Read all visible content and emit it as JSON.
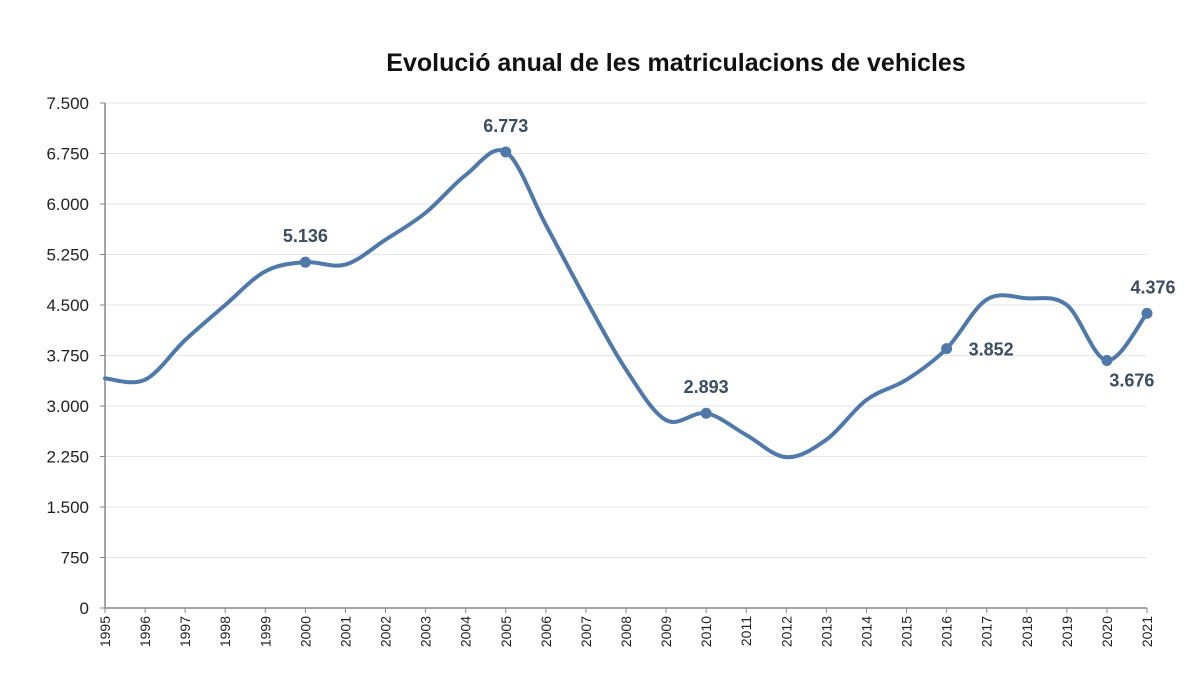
{
  "chart_data": {
    "type": "line",
    "title": "Evolució anual de les matriculacions de vehicles",
    "xlabel": "",
    "ylabel": "",
    "ylim": [
      0,
      7500
    ],
    "yticks": [
      0,
      750,
      1500,
      2250,
      3000,
      3750,
      4500,
      5250,
      6000,
      6750,
      7500
    ],
    "ytick_labels": [
      "0",
      "750",
      "1.500",
      "2.250",
      "3.000",
      "3.750",
      "4.500",
      "5.250",
      "6.000",
      "6.750",
      "7.500"
    ],
    "grid": true,
    "smooth": true,
    "line_color": "#4f78ab",
    "label_color": "#3b4c63",
    "categories": [
      "1995",
      "1996",
      "1997",
      "1998",
      "1999",
      "2000",
      "2001",
      "2002",
      "2003",
      "2004",
      "2005",
      "2006",
      "2007",
      "2008",
      "2009",
      "2010",
      "2011",
      "2012",
      "2013",
      "2014",
      "2015",
      "2016",
      "2017",
      "2018",
      "2019",
      "2020",
      "2021"
    ],
    "series": [
      {
        "values": [
          3410,
          3390,
          3980,
          4500,
          5000,
          5136,
          5100,
          5470,
          5870,
          6430,
          6773,
          5690,
          4580,
          3540,
          2790,
          2893,
          2570,
          2240,
          2500,
          3090,
          3390,
          3852,
          4580,
          4600,
          4500,
          3676,
          4376
        ]
      }
    ],
    "annotations": [
      {
        "year": "2000",
        "value": 5136,
        "text": "5.136",
        "pos": "above"
      },
      {
        "year": "2005",
        "value": 6773,
        "text": "6.773",
        "pos": "above"
      },
      {
        "year": "2010",
        "value": 2893,
        "text": "2.893",
        "pos": "above"
      },
      {
        "year": "2016",
        "value": 3852,
        "text": "3.852",
        "pos": "right"
      },
      {
        "year": "2020",
        "value": 3676,
        "text": "3.676",
        "pos": "below"
      },
      {
        "year": "2021",
        "value": 4376,
        "text": "4.376",
        "pos": "above"
      }
    ]
  }
}
